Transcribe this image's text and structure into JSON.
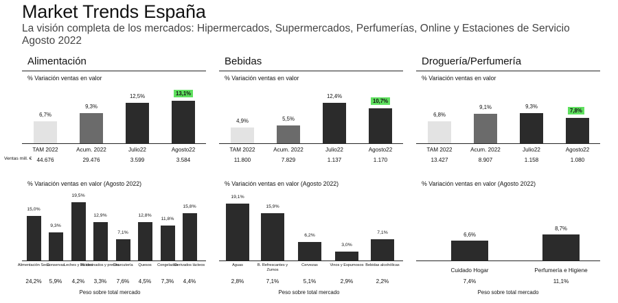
{
  "header": {
    "title": "Market Trends España",
    "subtitle": "La visión completa de los mercados: Hipermercados, Supermercados, Perfumerías, Online y Estaciones de Servicio",
    "period": "Agosto 2022"
  },
  "colors": {
    "highlight": "#5fe05f",
    "light": "#e3e3e3",
    "medium": "#6b6b6b",
    "dark": "#2b2b2b"
  },
  "ventas_label": "Ventas mill. €",
  "peso_label": "Peso sobre total mercado",
  "chart_data": [
    {
      "type": "bar",
      "section": "Alimentación",
      "title": "% Variación ventas en valor",
      "categories": [
        "TAM 2022",
        "Acum. 2022",
        "Julio22",
        "Agosto22"
      ],
      "values": [
        6.7,
        9.3,
        12.5,
        13.1
      ],
      "value_labels": [
        "6,7%",
        "9,3%",
        "12,5%",
        "13,1%"
      ],
      "ventas": [
        "44.676",
        "29.476",
        "3.599",
        "3.584"
      ],
      "highlight_index": 3,
      "ylim": [
        0,
        16
      ]
    },
    {
      "type": "bar",
      "section": "Bebidas",
      "title": "% Variación ventas en valor",
      "categories": [
        "TAM 2022",
        "Acum. 2022",
        "Julio22",
        "Agosto22"
      ],
      "values": [
        4.9,
        5.5,
        12.4,
        10.7
      ],
      "value_labels": [
        "4,9%",
        "5,5%",
        "12,4%",
        "10,7%"
      ],
      "ventas": [
        "11.800",
        "7.829",
        "1.137",
        "1.170"
      ],
      "highlight_index": 3,
      "ylim": [
        0,
        16
      ]
    },
    {
      "type": "bar",
      "section": "Droguería/Perfumería",
      "title": "% Variación ventas en valor",
      "categories": [
        "TAM 2022",
        "Acum. 2022",
        "Julio22",
        "Agosto22"
      ],
      "values": [
        6.8,
        9.1,
        9.3,
        7.8
      ],
      "value_labels": [
        "6,8%",
        "9,1%",
        "9,3%",
        "7,8%"
      ],
      "ventas": [
        "13.427",
        "8.907",
        "1.158",
        "1.080"
      ],
      "highlight_index": 3,
      "ylim": [
        0,
        16
      ]
    },
    {
      "type": "bar",
      "title": "% Variación ventas en valor (Agosto 2022)",
      "categories": [
        "Alimentación Seca",
        "Conservas",
        "Leches y batidos",
        "Pl. cocinados y precoc.",
        "Charcutería",
        "Quesos",
        "Congelados",
        "Derivados lácteos"
      ],
      "values": [
        15.0,
        9.3,
        19.5,
        12.9,
        7.1,
        12.8,
        11.8,
        15.8
      ],
      "value_labels": [
        "15,0%",
        "9,3%",
        "19,5%",
        "12,9%",
        "7,1%",
        "12,8%",
        "11,8%",
        "15,8%"
      ],
      "peso": [
        "24,2%",
        "5,9%",
        "4,2%",
        "3,3%",
        "7,6%",
        "4,5%",
        "7,3%",
        "4,4%"
      ],
      "ylim": [
        0,
        22
      ]
    },
    {
      "type": "bar",
      "title": "% Variación ventas en valor (Agosto 2022)",
      "categories": [
        "Aguas",
        "B. Refrescantes y Zumos",
        "Cervezas",
        "Vinos y Espumosos",
        "Bebidas alcohólicas"
      ],
      "values": [
        19.1,
        15.9,
        6.2,
        3.0,
        7.1
      ],
      "value_labels": [
        "19,1%",
        "15,9%",
        "6,2%",
        "3,0%",
        "7,1%"
      ],
      "peso": [
        "2,8%",
        "7,1%",
        "5,1%",
        "2,9%",
        "2,2%"
      ],
      "ylim": [
        0,
        22
      ]
    },
    {
      "type": "bar",
      "title": "% Variación ventas en valor (Agosto 2022)",
      "categories": [
        "Cuidado Hogar",
        "Perfumería e Higiene"
      ],
      "values": [
        6.6,
        8.7
      ],
      "value_labels": [
        "6,6%",
        "8,7%"
      ],
      "peso": [
        "7,4%",
        "11,1%"
      ],
      "ylim": [
        0,
        22
      ]
    }
  ]
}
